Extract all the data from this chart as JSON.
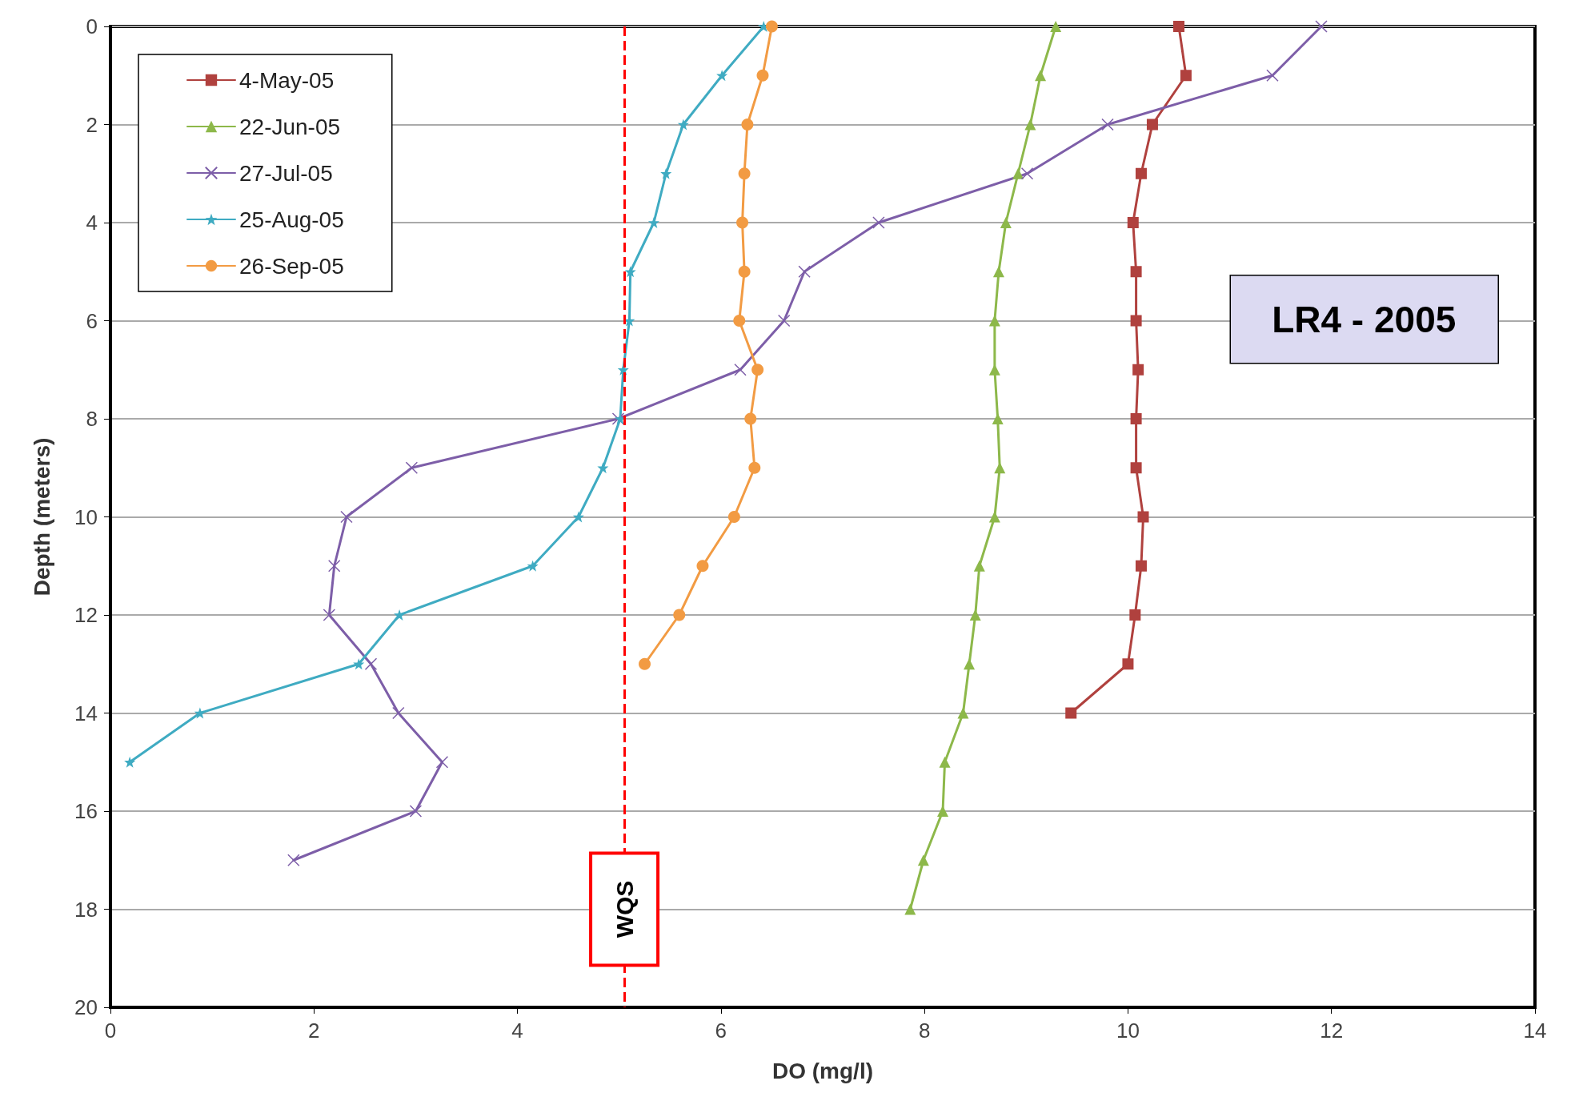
{
  "chart_data": {
    "type": "line",
    "xlabel": "DO (mg/l)",
    "ylabel": "Depth (meters)",
    "xlim": [
      0,
      14
    ],
    "xticks": [
      0,
      2,
      4,
      6,
      8,
      10,
      12,
      14
    ],
    "ylim": [
      20,
      0
    ],
    "yticks": [
      0,
      2,
      4,
      6,
      8,
      10,
      12,
      14,
      16,
      18,
      20
    ],
    "grid": "y",
    "legend": "top left",
    "line_style": "solid",
    "series": [
      {
        "name": "4-May-05",
        "color": "#b0413e",
        "marker": "square",
        "x": [
          10.5,
          10.57,
          10.24,
          10.13,
          10.05,
          10.08,
          10.08,
          10.1,
          10.08,
          10.08,
          10.15,
          10.13,
          10.07,
          10.0,
          9.44
        ],
        "values": [
          0,
          1,
          2,
          3,
          4,
          5,
          6,
          7,
          8,
          9,
          10,
          11,
          12,
          13,
          14
        ]
      },
      {
        "name": "22-Jun-05",
        "color": "#8db84a",
        "marker": "triangle",
        "x": [
          9.29,
          9.14,
          9.04,
          8.92,
          8.8,
          8.73,
          8.69,
          8.69,
          8.72,
          8.74,
          8.69,
          8.54,
          8.5,
          8.44,
          8.38,
          8.2,
          8.18,
          7.99,
          7.86
        ],
        "values": [
          0,
          1,
          2,
          3,
          4,
          5,
          6,
          7,
          8,
          9,
          10,
          11,
          12,
          13,
          14,
          15,
          16,
          17,
          18
        ]
      },
      {
        "name": "27-Jul-05",
        "color": "#7d5ea8",
        "marker": "cross",
        "x": [
          11.9,
          11.42,
          9.8,
          9.01,
          7.55,
          6.82,
          6.62,
          6.19,
          4.99,
          2.96,
          2.32,
          2.2,
          2.15,
          2.56,
          2.83,
          3.26,
          3.0,
          1.8
        ],
        "values": [
          0,
          1,
          2,
          3,
          4,
          5,
          6,
          7,
          8,
          9,
          10,
          11,
          12,
          13,
          14,
          15,
          16,
          17
        ]
      },
      {
        "name": "25-Aug-05",
        "color": "#3fabc2",
        "marker": "star",
        "x": [
          6.42,
          6.01,
          5.63,
          5.46,
          5.34,
          5.11,
          5.1,
          5.04,
          5.01,
          4.84,
          4.6,
          4.15,
          2.84,
          2.44,
          0.88,
          0.19
        ],
        "values": [
          0,
          1,
          2,
          3,
          4,
          5,
          6,
          7,
          8,
          9,
          10,
          11,
          12,
          13,
          14,
          15
        ]
      },
      {
        "name": "26-Sep-05",
        "color": "#f29b43",
        "marker": "circle",
        "x": [
          6.5,
          6.41,
          6.26,
          6.23,
          6.21,
          6.23,
          6.18,
          6.36,
          6.29,
          6.33,
          6.13,
          5.82,
          5.59,
          5.25
        ],
        "values": [
          0,
          1,
          2,
          3,
          4,
          5,
          6,
          7,
          8,
          9,
          10,
          11,
          12,
          13
        ]
      }
    ],
    "ref_lines": [
      {
        "axis": "x",
        "value": 5.05,
        "label": "WQS",
        "color": "#ff0000",
        "line_style": "dashed"
      }
    ],
    "annotations": [
      "LR4 - 2005"
    ]
  }
}
